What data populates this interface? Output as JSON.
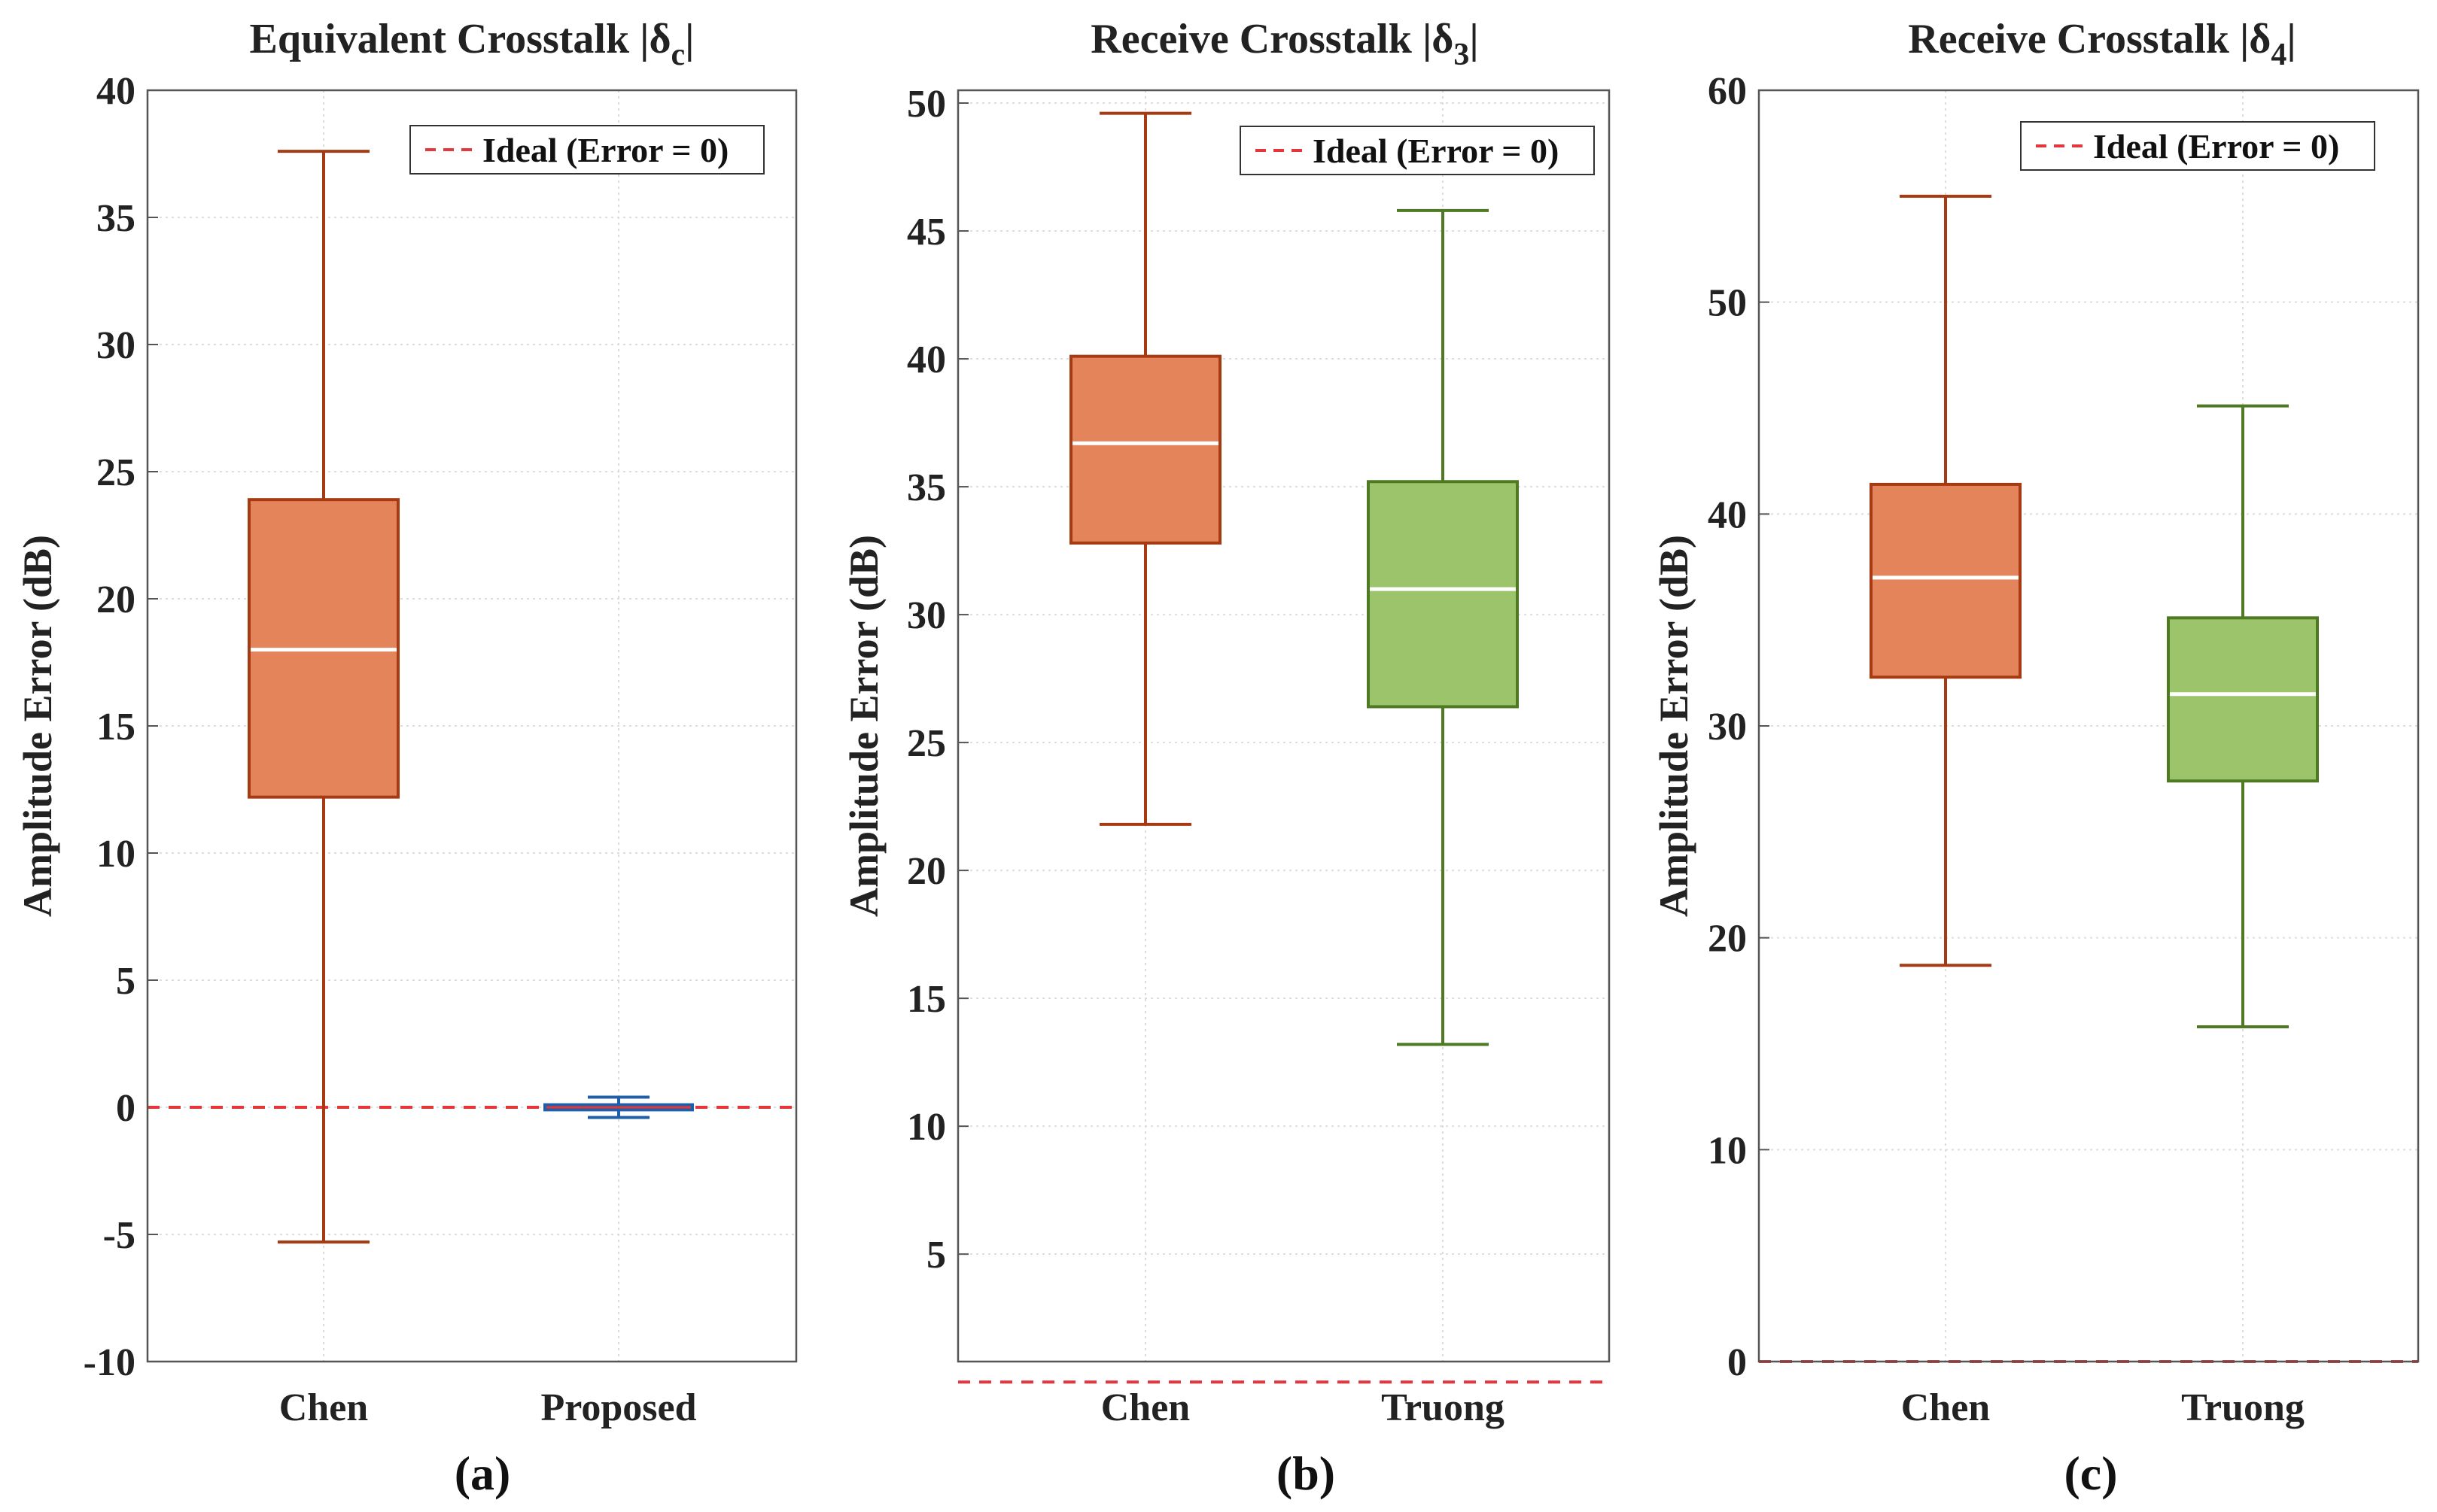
{
  "ideal_color": "#e5373b",
  "chart_data": [
    {
      "type": "boxplot",
      "panel_label": "(a)",
      "title": "Equivalent Crosstalk |δ",
      "title_sub": "c",
      "title_close": "|",
      "ylabel": "Amplitude Error (dB)",
      "ylim": [
        -10,
        40
      ],
      "yticks": [
        -10,
        -5,
        0,
        5,
        10,
        15,
        20,
        25,
        30,
        35,
        40
      ],
      "yticklabels": [
        "-10",
        "-5",
        "0",
        "5",
        "10",
        "15",
        "20",
        "25",
        "30",
        "35",
        "40"
      ],
      "categories": [
        "Chen",
        "Proposed"
      ],
      "legend": "Ideal (Error = 0)",
      "ideal_value": 0,
      "boxes": [
        {
          "name": "Chen",
          "min": -5.3,
          "q1": 12.2,
          "median": 18.0,
          "q3": 23.9,
          "max": 37.6,
          "fill": "#e4845a",
          "edge": "#a63a12",
          "filled": true
        },
        {
          "name": "Proposed",
          "min": -0.4,
          "q1": -0.1,
          "median": 0.0,
          "q3": 0.1,
          "max": 0.4,
          "fill": "#ffffff",
          "edge": "#1f5fa8",
          "filled": false
        }
      ]
    },
    {
      "type": "boxplot",
      "panel_label": "(b)",
      "title": "Receive Crosstalk |δ",
      "title_sub": "3",
      "title_close": "|",
      "ylabel": "Amplitude Error (dB)",
      "ylim": [
        0.8,
        50.5
      ],
      "yticks": [
        5,
        10,
        15,
        20,
        25,
        30,
        35,
        40,
        45,
        50
      ],
      "yticklabels": [
        "5",
        "10",
        "15",
        "20",
        "25",
        "30",
        "35",
        "40",
        "45",
        "50"
      ],
      "categories": [
        "Chen",
        "Truong"
      ],
      "legend": "Ideal (Error = 0)",
      "ideal_value": 0,
      "boxes": [
        {
          "name": "Chen",
          "min": 21.8,
          "q1": 32.8,
          "median": 36.7,
          "q3": 40.1,
          "max": 49.6,
          "fill": "#e4845a",
          "edge": "#a63a12",
          "filled": true
        },
        {
          "name": "Truong",
          "min": 13.2,
          "q1": 26.4,
          "median": 31.0,
          "q3": 35.2,
          "max": 45.8,
          "fill": "#9cc46a",
          "edge": "#4e7a23",
          "filled": true
        }
      ]
    },
    {
      "type": "boxplot",
      "panel_label": "(c)",
      "title": "Receive Crosstalk |δ",
      "title_sub": "4",
      "title_close": "|",
      "ylabel": "Amplitude Error (dB)",
      "ylim": [
        0,
        60
      ],
      "yticks": [
        0,
        10,
        20,
        30,
        40,
        50,
        60
      ],
      "yticklabels": [
        "0",
        "10",
        "20",
        "30",
        "40",
        "50",
        "60"
      ],
      "categories": [
        "Chen",
        "Truong"
      ],
      "legend": "Ideal (Error = 0)",
      "ideal_value": 0,
      "boxes": [
        {
          "name": "Chen",
          "min": 18.7,
          "q1": 32.3,
          "median": 37.0,
          "q3": 41.4,
          "max": 55.0,
          "fill": "#e4845a",
          "edge": "#a63a12",
          "filled": true
        },
        {
          "name": "Truong",
          "min": 15.8,
          "q1": 27.4,
          "median": 31.5,
          "q3": 35.1,
          "max": 45.1,
          "fill": "#9cc46a",
          "edge": "#4e7a23",
          "filled": true
        }
      ]
    }
  ]
}
